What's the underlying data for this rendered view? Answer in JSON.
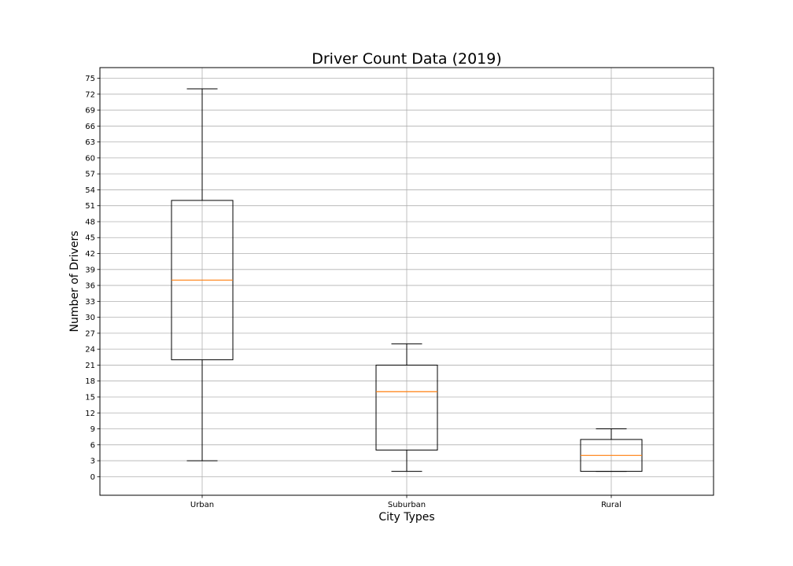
{
  "chart_data": {
    "type": "box",
    "title": "Driver Count Data (2019)",
    "xlabel": "City Types",
    "ylabel": "Number of Drivers",
    "categories": [
      "Urban",
      "Suburban",
      "Rural"
    ],
    "boxes": [
      {
        "category": "Urban",
        "whisker_low": 3,
        "q1": 22,
        "median": 37,
        "q3": 52,
        "whisker_high": 73
      },
      {
        "category": "Suburban",
        "whisker_low": 1,
        "q1": 5,
        "median": 16,
        "q3": 21,
        "whisker_high": 25
      },
      {
        "category": "Rural",
        "whisker_low": 1,
        "q1": 1,
        "median": 4,
        "q3": 7,
        "whisker_high": 9
      }
    ],
    "yticks": [
      "0",
      "3",
      "6",
      "9",
      "12",
      "15",
      "18",
      "21",
      "24",
      "27",
      "30",
      "33",
      "36",
      "39",
      "42",
      "45",
      "48",
      "51",
      "54",
      "57",
      "60",
      "63",
      "66",
      "69",
      "72",
      "75"
    ],
    "ylim": [
      -3.5,
      77
    ],
    "grid": true,
    "colors": {
      "box": "#000000",
      "median": "#ff7f0e",
      "grid": "#b0b0b0"
    }
  }
}
